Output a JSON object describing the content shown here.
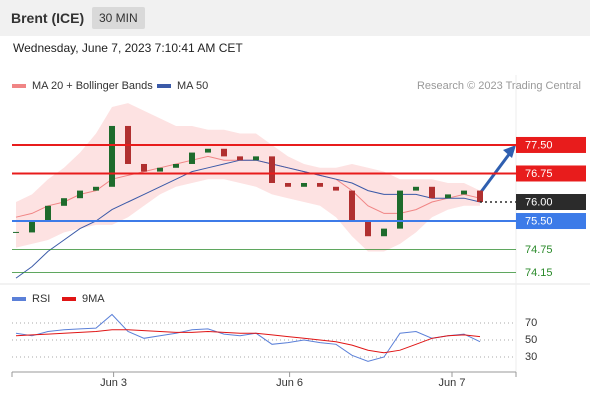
{
  "header": {
    "title": "Brent (ICE)",
    "timeframe": "30 MIN",
    "timestamp": "Wednesday, June 7, 2023 7:10:41 AM CET"
  },
  "chart_data": [
    {
      "type": "candlestick",
      "source": "Research © 2023 Trading Central",
      "up_color": "#1e6b2c",
      "down_color": "#b03030",
      "xlim": [
        -0.5,
        31.5
      ],
      "ylim": [
        73.87,
        79.34
      ],
      "values": [
        75.2,
        75.5,
        75.9,
        76.1,
        76.3,
        76.4,
        78.0,
        77.0,
        76.8,
        76.9,
        77.0,
        77.3,
        77.4,
        77.2,
        77.1,
        77.2,
        76.5,
        76.4,
        76.5,
        76.4,
        76.3,
        75.5,
        75.1,
        75.3,
        76.3,
        76.4,
        76.1,
        76.2,
        76.3,
        76.0
      ],
      "series": [
        {
          "name": "MA 20 + Bollinger Bands",
          "color": "#f08585",
          "band_color": "#fde2e2",
          "values": [
            75.6,
            75.7,
            75.9,
            76.0,
            76.2,
            76.3,
            76.6,
            76.7,
            76.8,
            76.9,
            77.0,
            77.1,
            77.2,
            77.1,
            77.1,
            77.1,
            77.0,
            76.9,
            76.8,
            76.7,
            76.6,
            76.3,
            75.9,
            75.7,
            75.7,
            75.8,
            76.0,
            76.1,
            76.2,
            76.1
          ],
          "upper": [
            76.0,
            76.2,
            76.6,
            76.9,
            77.3,
            77.8,
            78.5,
            78.6,
            78.4,
            78.2,
            78.0,
            78.0,
            77.9,
            77.9,
            77.8,
            77.8,
            77.5,
            77.2,
            77.0,
            76.9,
            76.9,
            77.0,
            76.9,
            76.8,
            76.6,
            76.6,
            76.6,
            76.5,
            76.5,
            76.3
          ],
          "lower": [
            74.8,
            74.9,
            75.0,
            75.2,
            75.3,
            75.4,
            75.4,
            75.6,
            75.9,
            76.2,
            76.4,
            76.5,
            76.6,
            76.6,
            76.5,
            76.4,
            76.2,
            76.1,
            76.0,
            75.9,
            75.6,
            75.1,
            74.7,
            74.7,
            74.9,
            75.2,
            75.6,
            75.8,
            75.9,
            75.9
          ]
        },
        {
          "name": "MA 50",
          "color": "#3b5aa8",
          "values": [
            74.0,
            74.3,
            74.7,
            75.0,
            75.3,
            75.5,
            75.8,
            76.0,
            76.2,
            76.4,
            76.6,
            76.8,
            76.9,
            77.0,
            77.1,
            77.1,
            77.0,
            76.9,
            76.8,
            76.7,
            76.6,
            76.5,
            76.3,
            76.2,
            76.2,
            76.2,
            76.1,
            76.1,
            76.1,
            76.0
          ]
        }
      ],
      "levels": [
        {
          "value": 77.5,
          "label": "77.50",
          "color": "#e81c1c",
          "line": "thick",
          "box": true
        },
        {
          "value": 76.75,
          "label": "76.75",
          "color": "#e81c1c",
          "line": "thick",
          "box": true
        },
        {
          "value": 76.0,
          "label": "76.00",
          "color": "#2b2b2b",
          "line": "dotted",
          "box": true
        },
        {
          "value": 75.5,
          "label": "75.50",
          "color": "#3d7be8",
          "line": "thick",
          "box": true
        },
        {
          "value": 74.75,
          "label": "74.75",
          "color": "#2a8a2a",
          "line": "thin",
          "box": false
        },
        {
          "value": 74.15,
          "label": "74.15",
          "color": "#2a8a2a",
          "line": "thin",
          "box": false
        }
      ]
    },
    {
      "type": "line",
      "xlim": [
        -0.5,
        31.5
      ],
      "ylim": [
        10,
        90
      ],
      "yticks": [
        30,
        50,
        70
      ],
      "xticks": [
        {
          "value": 6.1,
          "label": "Jun 3"
        },
        {
          "value": 17.1,
          "label": "Jun 6"
        },
        {
          "value": 27.25,
          "label": "Jun 7"
        }
      ],
      "series": [
        {
          "name": "RSI",
          "color": "#5b80d8",
          "values": [
            58,
            55,
            60,
            62,
            63,
            64,
            80,
            60,
            52,
            55,
            58,
            62,
            63,
            57,
            55,
            58,
            45,
            47,
            50,
            47,
            45,
            32,
            25,
            30,
            58,
            60,
            52,
            55,
            57,
            48
          ]
        },
        {
          "name": "9MA",
          "color": "#e01515",
          "values": [
            55,
            56,
            57,
            58,
            59,
            60,
            62,
            62,
            61,
            60,
            59,
            59,
            60,
            59,
            58,
            58,
            56,
            54,
            52,
            50,
            48,
            44,
            38,
            35,
            38,
            45,
            52,
            55,
            56,
            54
          ]
        }
      ]
    }
  ]
}
